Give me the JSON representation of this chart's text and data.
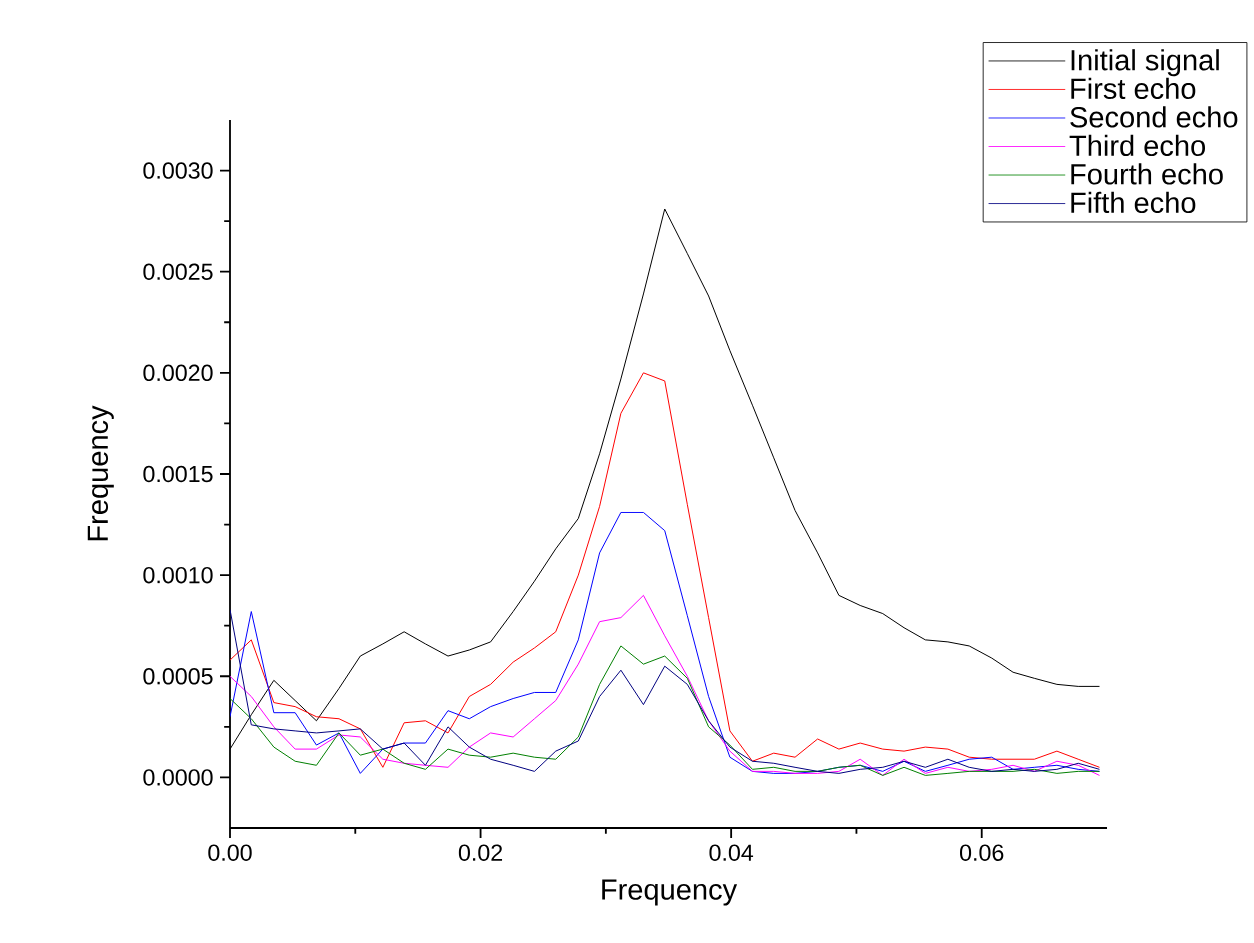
{
  "chart_data": {
    "type": "line",
    "xlabel": "Frequency",
    "ylabel": "Frequency",
    "x": [
      0,
      0.0017,
      0.0035,
      0.0052,
      0.0069,
      0.0087,
      0.0104,
      0.0122,
      0.0139,
      0.0156,
      0.0174,
      0.0191,
      0.0208,
      0.0226,
      0.0243,
      0.026,
      0.0278,
      0.0295,
      0.0312,
      0.033,
      0.0347,
      0.0365,
      0.0382,
      0.0399,
      0.0417,
      0.0434,
      0.0451,
      0.0469,
      0.0486,
      0.0503,
      0.0521,
      0.0538,
      0.0555,
      0.0573,
      0.059,
      0.0608,
      0.0625,
      0.0642,
      0.066,
      0.0677,
      0.0694
    ],
    "series": [
      {
        "name": "Initial signal",
        "color": "#000000",
        "values": [
          0.00014,
          0.00031,
          0.00048,
          0.00038,
          0.00028,
          0.00044,
          0.0006,
          0.00066,
          0.00072,
          0.00066,
          0.0006,
          0.00063,
          0.00067,
          0.00082,
          0.00097,
          0.00113,
          0.00128,
          0.0016,
          0.00197,
          0.00239,
          0.00281,
          0.00259,
          0.00238,
          0.00211,
          0.00184,
          0.00158,
          0.00132,
          0.00111,
          0.0009,
          0.00085,
          0.00081,
          0.00074,
          0.00068,
          0.00067,
          0.00065,
          0.00059,
          0.00052,
          0.00049,
          0.00046,
          0.00045,
          0.00045
        ]
      },
      {
        "name": "First echo",
        "color": "#ff0000",
        "values": [
          0.00058,
          0.00068,
          0.00037,
          0.00035,
          0.0003,
          0.00029,
          0.00024,
          5e-05,
          0.00027,
          0.00028,
          0.00022,
          0.0004,
          0.00046,
          0.00057,
          0.00064,
          0.00072,
          0.001,
          0.00134,
          0.0018,
          0.002,
          0.00196,
          0.00135,
          0.00079,
          0.00023,
          8e-05,
          0.00012,
          0.0001,
          0.00019,
          0.00014,
          0.00017,
          0.00014,
          0.00013,
          0.00015,
          0.00014,
          0.0001,
          9e-05,
          9e-05,
          9e-05,
          0.00013,
          9e-05,
          5e-05
        ]
      },
      {
        "name": "Second echo",
        "color": "#0000ff",
        "values": [
          0.0003,
          0.00082,
          0.00032,
          0.00032,
          0.00016,
          0.00022,
          2e-05,
          0.00014,
          0.00017,
          0.00017,
          0.00033,
          0.00029,
          0.00035,
          0.00039,
          0.00042,
          0.00042,
          0.00068,
          0.00111,
          0.00131,
          0.00131,
          0.00122,
          0.0008,
          0.0004,
          0.0001,
          3e-05,
          2e-05,
          2e-05,
          3e-05,
          5e-05,
          6e-05,
          3e-05,
          8e-05,
          3e-05,
          6e-05,
          9e-05,
          0.0001,
          4e-05,
          5e-05,
          6e-05,
          4e-05,
          3e-05
        ]
      },
      {
        "name": "Third echo",
        "color": "#ff00ff",
        "values": [
          0.0005,
          0.0004,
          0.00025,
          0.00014,
          0.00014,
          0.00021,
          0.0002,
          9e-05,
          7e-05,
          6e-05,
          5e-05,
          0.00015,
          0.00022,
          0.0002,
          0.00029,
          0.00038,
          0.00056,
          0.00077,
          0.00079,
          0.0009,
          0.0007,
          0.0005,
          0.00028,
          0.00013,
          3e-05,
          3e-05,
          2e-05,
          2e-05,
          3e-05,
          9e-05,
          1e-05,
          9e-05,
          2e-05,
          5e-05,
          3e-05,
          4e-05,
          6e-05,
          3e-05,
          8e-05,
          6e-05,
          1e-05
        ]
      },
      {
        "name": "Fourth echo",
        "color": "#008000",
        "values": [
          0.00039,
          0.00029,
          0.00015,
          8e-05,
          6e-05,
          0.00022,
          0.00011,
          0.00014,
          7e-05,
          4e-05,
          0.00014,
          0.00011,
          0.0001,
          0.00012,
          0.0001,
          9e-05,
          0.0002,
          0.00046,
          0.00065,
          0.00056,
          0.0006,
          0.00049,
          0.00025,
          0.00016,
          4e-05,
          5e-05,
          3e-05,
          3e-05,
          5e-05,
          6e-05,
          1e-05,
          5e-05,
          1e-05,
          2e-05,
          3e-05,
          3e-05,
          3e-05,
          4e-05,
          2e-05,
          3e-05,
          3e-05
        ]
      },
      {
        "name": "Fifth echo",
        "color": "#000080",
        "values": [
          0.00083,
          0.00026,
          0.00024,
          0.00023,
          0.00022,
          0.00023,
          0.00024,
          0.00014,
          0.00017,
          6e-05,
          0.00025,
          0.00015,
          9e-05,
          6e-05,
          3e-05,
          0.00013,
          0.00018,
          0.0004,
          0.00053,
          0.00036,
          0.00055,
          0.00046,
          0.00028,
          0.00015,
          8e-05,
          7e-05,
          5e-05,
          3e-05,
          2e-05,
          4e-05,
          5e-05,
          8e-05,
          5e-05,
          9e-05,
          5e-05,
          3e-05,
          4e-05,
          3e-05,
          4e-05,
          7e-05,
          4e-05
        ]
      }
    ],
    "xlim": [
      0,
      0.07
    ],
    "ylim": [
      -0.00025,
      0.00325
    ],
    "xticks": [
      {
        "value": 0,
        "label": "0.00"
      },
      {
        "value": 0.02,
        "label": "0.02"
      },
      {
        "value": 0.04,
        "label": "0.04"
      },
      {
        "value": 0.06,
        "label": "0.06"
      }
    ],
    "yticks": [
      {
        "value": 0,
        "label": "0.0000"
      },
      {
        "value": 0.0005,
        "label": "0.0005"
      },
      {
        "value": 0.001,
        "label": "0.0010"
      },
      {
        "value": 0.0015,
        "label": "0.0015"
      },
      {
        "value": 0.002,
        "label": "0.0020"
      },
      {
        "value": 0.0025,
        "label": "0.0025"
      },
      {
        "value": 0.003,
        "label": "0.0030"
      }
    ],
    "legend": "top right",
    "marker": "none",
    "line_style": "solid",
    "grid": false
  }
}
